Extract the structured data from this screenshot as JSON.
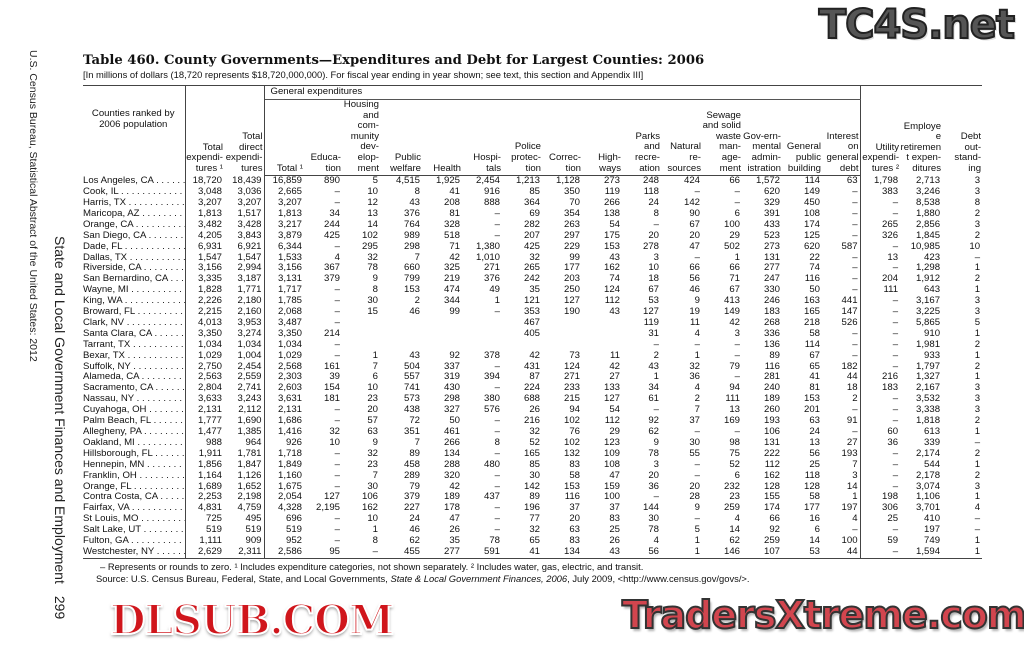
{
  "side": {
    "source_line": "U.S. Census Bureau, Statistical Abstract of the United States: 2012",
    "section_title": "State and Local Government Finances and Employment",
    "page_number": "299"
  },
  "title": "Table 460. County Governments—Expenditures and Debt for Largest Counties: 2006",
  "subtitle": "[In millions of dollars (18,720 represents $18,720,000,000). For fiscal year ending in year shown; see text, this section and Appendix III]",
  "headers": {
    "group": "General expenditures",
    "columns": [
      "Counties ranked by 2006 population",
      "Total expendi-tures ¹",
      "Total direct expendi-tures",
      "Total ¹",
      "Educa-tion",
      "Housing and com-munity dev-elop-ment",
      "Public welfare",
      "Health",
      "Hospi-tals",
      "Police protec-tion",
      "Correc-tion",
      "High-ways",
      "Parks and recre-ation",
      "Natural re-sources",
      "Sewage and solid waste man-age-ment",
      "Gov-ern-mental admin-istration",
      "General public building",
      "Interest on general debt",
      "Utility expendi-tures ²",
      "Employee retirement expen-ditures",
      "Debt out-stand-ing"
    ]
  },
  "rows": [
    [
      "Los Angeles, CA",
      "18,720",
      "18,439",
      "16,859",
      "890",
      "5",
      "4,515",
      "1,925",
      "2,454",
      "1,213",
      "1,128",
      "273",
      "248",
      "424",
      "66",
      "1,572",
      "114",
      "63",
      "1,798",
      "2,713",
      "3"
    ],
    [
      "Cook, IL",
      "3,048",
      "3,036",
      "2,665",
      "–",
      "10",
      "8",
      "41",
      "916",
      "85",
      "350",
      "119",
      "118",
      "–",
      "–",
      "620",
      "149",
      "–",
      "383",
      "3,246",
      "3"
    ],
    [
      "Harris, TX",
      "3,207",
      "3,207",
      "3,207",
      "–",
      "12",
      "43",
      "208",
      "888",
      "364",
      "70",
      "266",
      "24",
      "142",
      "–",
      "329",
      "450",
      "–",
      "–",
      "8,538",
      "8"
    ],
    [
      "Maricopa, AZ",
      "1,813",
      "1,517",
      "1,813",
      "34",
      "13",
      "376",
      "81",
      "–",
      "69",
      "354",
      "138",
      "8",
      "90",
      "6",
      "391",
      "108",
      "–",
      "–",
      "1,880",
      "2"
    ],
    [
      "Orange, CA",
      "3,482",
      "3,428",
      "3,217",
      "244",
      "14",
      "764",
      "328",
      "–",
      "282",
      "263",
      "54",
      "–",
      "67",
      "100",
      "433",
      "174",
      "–",
      "265",
      "2,856",
      "3"
    ],
    [
      "San Diego, CA",
      "4,205",
      "3,843",
      "3,879",
      "425",
      "102",
      "989",
      "518",
      "–",
      "207",
      "297",
      "175",
      "20",
      "20",
      "29",
      "523",
      "125",
      "–",
      "326",
      "1,845",
      "2"
    ],
    [
      "Dade, FL",
      "6,931",
      "6,921",
      "6,344",
      "–",
      "295",
      "298",
      "71",
      "1,380",
      "425",
      "229",
      "153",
      "278",
      "47",
      "502",
      "273",
      "620",
      "587",
      "–",
      "10,985",
      "10"
    ],
    [
      "Dallas, TX",
      "1,547",
      "1,547",
      "1,533",
      "4",
      "32",
      "7",
      "42",
      "1,010",
      "32",
      "99",
      "43",
      "3",
      "–",
      "1",
      "131",
      "22",
      "–",
      "13",
      "423",
      "–"
    ],
    [
      "Riverside, CA",
      "3,156",
      "2,994",
      "3,156",
      "367",
      "78",
      "660",
      "325",
      "271",
      "265",
      "177",
      "162",
      "10",
      "66",
      "66",
      "277",
      "74",
      "–",
      "–",
      "1,298",
      "1"
    ],
    [
      "San Bernardino, CA",
      "3,335",
      "3,187",
      "3,131",
      "379",
      "9",
      "799",
      "219",
      "376",
      "242",
      "203",
      "74",
      "18",
      "56",
      "71",
      "247",
      "116",
      "–",
      "204",
      "1,912",
      "2"
    ],
    [
      "Wayne, MI",
      "1,828",
      "1,771",
      "1,717",
      "–",
      "8",
      "153",
      "474",
      "49",
      "35",
      "250",
      "124",
      "67",
      "46",
      "67",
      "330",
      "50",
      "–",
      "111",
      "643",
      "1"
    ],
    [
      "King, WA",
      "2,226",
      "2,180",
      "1,785",
      "–",
      "30",
      "2",
      "344",
      "1",
      "121",
      "127",
      "112",
      "53",
      "9",
      "413",
      "246",
      "163",
      "441",
      "–",
      "3,167",
      "3"
    ],
    [
      "Broward, FL",
      "2,215",
      "2,160",
      "2,068",
      "–",
      "15",
      "46",
      "99",
      "–",
      "353",
      "190",
      "43",
      "127",
      "19",
      "149",
      "183",
      "165",
      "147",
      "–",
      "3,225",
      "3"
    ],
    [
      "Clark, NV",
      "4,013",
      "3,953",
      "3,487",
      "–",
      "",
      "",
      "",
      "",
      "467",
      "",
      "",
      "119",
      "11",
      "42",
      "268",
      "218",
      "526",
      "–",
      "5,865",
      "5"
    ],
    [
      "Santa Clara, CA",
      "3,350",
      "3,274",
      "3,350",
      "214",
      "",
      "",
      "",
      "",
      "405",
      "",
      "",
      "31",
      "4",
      "3",
      "336",
      "58",
      "–",
      "–",
      "910",
      "1"
    ],
    [
      "Tarrant, TX",
      "1,034",
      "1,034",
      "1,034",
      "–",
      "",
      "",
      "",
      "",
      "",
      "",
      "",
      "–",
      "–",
      "–",
      "136",
      "114",
      "–",
      "–",
      "1,981",
      "2"
    ],
    [
      "Bexar, TX",
      "1,029",
      "1,004",
      "1,029",
      "–",
      "1",
      "43",
      "92",
      "378",
      "42",
      "73",
      "11",
      "2",
      "1",
      "–",
      "89",
      "67",
      "–",
      "–",
      "933",
      "1"
    ],
    [
      "Suffolk, NY",
      "2,750",
      "2,454",
      "2,568",
      "161",
      "7",
      "504",
      "337",
      "–",
      "431",
      "124",
      "42",
      "43",
      "32",
      "79",
      "116",
      "65",
      "182",
      "–",
      "1,797",
      "2"
    ],
    [
      "Alameda, CA",
      "2,563",
      "2,559",
      "2,303",
      "39",
      "6",
      "557",
      "319",
      "394",
      "87",
      "271",
      "27",
      "1",
      "36",
      "–",
      "281",
      "41",
      "44",
      "216",
      "1,327",
      "1"
    ],
    [
      "Sacramento, CA",
      "2,804",
      "2,741",
      "2,603",
      "154",
      "10",
      "741",
      "430",
      "–",
      "224",
      "233",
      "133",
      "34",
      "4",
      "94",
      "240",
      "81",
      "18",
      "183",
      "2,167",
      "3"
    ],
    [
      "Nassau, NY",
      "3,633",
      "3,243",
      "3,631",
      "181",
      "23",
      "573",
      "298",
      "380",
      "688",
      "215",
      "127",
      "61",
      "2",
      "111",
      "189",
      "153",
      "2",
      "–",
      "3,532",
      "3"
    ],
    [
      "Cuyahoga, OH",
      "2,131",
      "2,112",
      "2,131",
      "–",
      "20",
      "438",
      "327",
      "576",
      "26",
      "94",
      "54",
      "–",
      "7",
      "13",
      "260",
      "201",
      "–",
      "–",
      "3,338",
      "3"
    ],
    [
      "Palm Beach, FL",
      "1,777",
      "1,690",
      "1,686",
      "–",
      "57",
      "72",
      "50",
      "–",
      "216",
      "102",
      "112",
      "92",
      "37",
      "169",
      "193",
      "63",
      "91",
      "–",
      "1,818",
      "2"
    ],
    [
      "Allegheny, PA",
      "1,477",
      "1,385",
      "1,416",
      "32",
      "63",
      "351",
      "461",
      "–",
      "32",
      "76",
      "29",
      "62",
      "–",
      "–",
      "106",
      "24",
      "–",
      "60",
      "613",
      "1"
    ],
    [
      "Oakland, MI",
      "988",
      "964",
      "926",
      "10",
      "9",
      "7",
      "266",
      "8",
      "52",
      "102",
      "123",
      "9",
      "30",
      "98",
      "131",
      "13",
      "27",
      "36",
      "339",
      "–"
    ],
    [
      "Hillsborough, FL",
      "1,911",
      "1,781",
      "1,718",
      "–",
      "32",
      "89",
      "134",
      "–",
      "165",
      "132",
      "109",
      "78",
      "55",
      "75",
      "222",
      "56",
      "193",
      "–",
      "2,174",
      "2"
    ],
    [
      "Hennepin, MN",
      "1,856",
      "1,847",
      "1,849",
      "–",
      "23",
      "458",
      "288",
      "480",
      "85",
      "83",
      "108",
      "3",
      "–",
      "52",
      "112",
      "25",
      "7",
      "–",
      "544",
      "1"
    ],
    [
      "Franklin, OH",
      "1,164",
      "1,126",
      "1,160",
      "–",
      "7",
      "289",
      "320",
      "–",
      "30",
      "58",
      "47",
      "20",
      "–",
      "6",
      "162",
      "118",
      "3",
      "–",
      "2,178",
      "2"
    ],
    [
      "Orange, FL",
      "1,689",
      "1,652",
      "1,675",
      "–",
      "30",
      "79",
      "42",
      "–",
      "142",
      "153",
      "159",
      "36",
      "20",
      "232",
      "128",
      "128",
      "14",
      "–",
      "3,074",
      "3"
    ],
    [
      "Contra Costa, CA",
      "2,253",
      "2,198",
      "2,054",
      "127",
      "106",
      "379",
      "189",
      "437",
      "89",
      "116",
      "100",
      "–",
      "28",
      "23",
      "155",
      "58",
      "1",
      "198",
      "1,106",
      "1"
    ],
    [
      "Fairfax, VA",
      "4,831",
      "4,759",
      "4,328",
      "2,195",
      "162",
      "227",
      "178",
      "–",
      "196",
      "37",
      "37",
      "144",
      "9",
      "259",
      "174",
      "177",
      "197",
      "306",
      "3,701",
      "4"
    ],
    [
      "St Louis, MO",
      "725",
      "495",
      "696",
      "–",
      "10",
      "24",
      "47",
      "–",
      "77",
      "20",
      "83",
      "30",
      "–",
      "4",
      "66",
      "16",
      "4",
      "25",
      "410",
      "–"
    ],
    [
      "Salt Lake, UT",
      "519",
      "519",
      "519",
      "–",
      "1",
      "46",
      "26",
      "–",
      "32",
      "63",
      "25",
      "78",
      "5",
      "14",
      "92",
      "6",
      "–",
      "–",
      "197",
      "–"
    ],
    [
      "Fulton, GA",
      "1,111",
      "909",
      "952",
      "–",
      "8",
      "62",
      "35",
      "78",
      "65",
      "83",
      "26",
      "4",
      "1",
      "62",
      "259",
      "14",
      "100",
      "59",
      "749",
      "1"
    ],
    [
      "Westchester, NY",
      "2,629",
      "2,311",
      "2,586",
      "95",
      "–",
      "455",
      "277",
      "591",
      "41",
      "134",
      "43",
      "56",
      "1",
      "146",
      "107",
      "53",
      "44",
      "–",
      "1,594",
      "1"
    ]
  ],
  "notes": {
    "footnotes": "– Represents or rounds to zero. ¹ Includes expenditure categories, not shown separately. ² Includes water, gas, electric, and transit.",
    "source_prefix": "Source: U.S. Census Bureau, Federal, State, and Local Governments, ",
    "source_title": "State & Local Government Finances, 2006",
    "source_suffix": ", July 2009, <http://www.census.gov/govs/>."
  },
  "watermarks": {
    "top_right": "TC4S.net",
    "center": "DLSUB.COM",
    "bottom_right": "TradersXtreme.com"
  }
}
